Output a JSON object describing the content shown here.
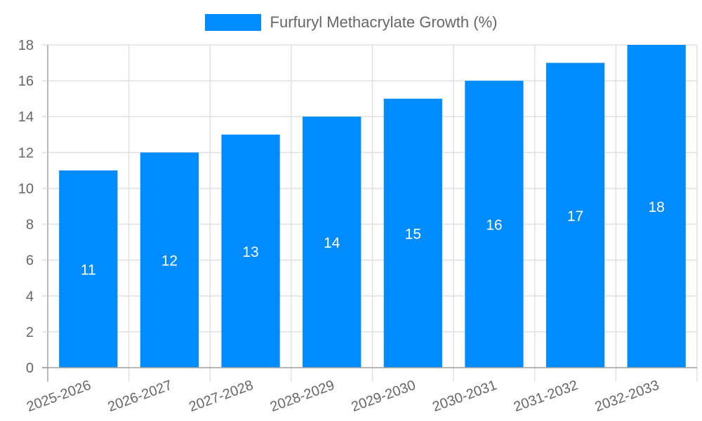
{
  "chart_data": {
    "type": "bar",
    "title": "",
    "xlabel": "",
    "ylabel": "",
    "categories": [
      "2025-2026",
      "2026-2027",
      "2027-2028",
      "2028-2029",
      "2029-2030",
      "2030-2031",
      "2031-2032",
      "2032-2033"
    ],
    "series": [
      {
        "name": "Furfuryl Methacrylate Growth (%)",
        "values": [
          11,
          12,
          13,
          14,
          15,
          16,
          17,
          18
        ],
        "color": "#008cff"
      }
    ],
    "ylim": [
      0,
      18
    ],
    "yticks": [
      0,
      2,
      4,
      6,
      8,
      10,
      12,
      14,
      16,
      18
    ],
    "grid": true,
    "legend_position": "top",
    "data_labels": true
  },
  "legend": {
    "label": "Furfuryl Methacrylate Growth (%)"
  },
  "colors": {
    "bar": "#008cff",
    "grid": "#e0e0e0",
    "axis": "#a0a0a0",
    "tick_text": "#666666",
    "data_label": "#ffffff"
  }
}
